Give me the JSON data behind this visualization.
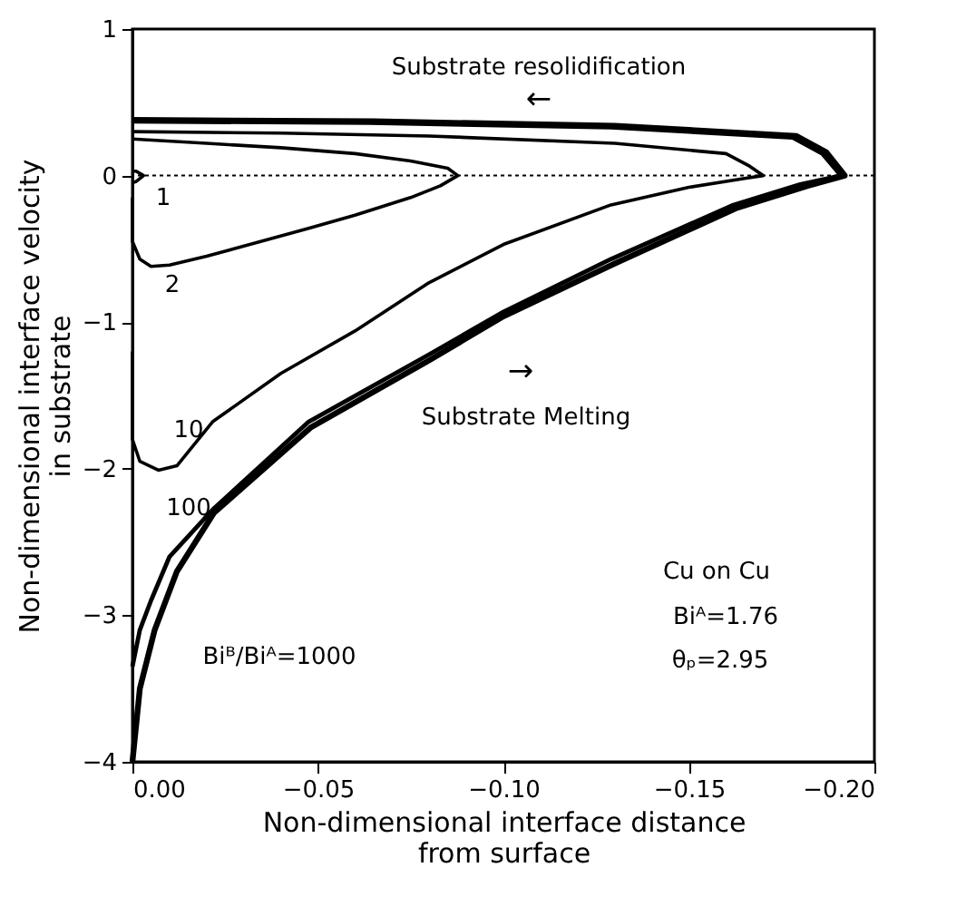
{
  "chart_data": {
    "type": "line",
    "xlabel": "Non-dimensional interface distance\nfrom surface",
    "ylabel": "Non-dimensional interface velocity\nin substrate",
    "xlim": [
      0,
      -0.2
    ],
    "xticks": [
      {
        "value": 0,
        "label": "0.00"
      },
      {
        "value": -0.05,
        "label": "−0.05"
      },
      {
        "value": -0.1,
        "label": "−0.10"
      },
      {
        "value": -0.15,
        "label": "−0.15"
      },
      {
        "value": -0.2,
        "label": "−0.20"
      }
    ],
    "ylim": [
      -4,
      1
    ],
    "yticks": [
      {
        "value": -4,
        "label": "−4"
      },
      {
        "value": -3,
        "label": "−3"
      },
      {
        "value": -2,
        "label": "−2"
      },
      {
        "value": -1,
        "label": "−1"
      },
      0,
      1
    ],
    "grid": false,
    "marker": "none",
    "line_style": "solid",
    "series": [
      {
        "color": "#000000",
        "x": [
          0,
          -0.001,
          -0.003,
          -0.001,
          0
        ],
        "values": [
          -0.05,
          -0.04,
          0,
          0.03,
          0.03
        ]
      },
      {
        "color": "#000000",
        "x": [
          0,
          0,
          -0.002,
          -0.005,
          -0.01,
          -0.02,
          -0.0475,
          -0.06,
          -0.075,
          -0.083,
          -0.0877,
          -0.085,
          -0.075,
          -0.06,
          -0.04,
          -0.02,
          0
        ],
        "values": [
          -0.15,
          -0.45,
          -0.57,
          -0.62,
          -0.61,
          -0.55,
          -0.36,
          -0.27,
          -0.15,
          -0.07,
          0,
          0.05,
          0.1,
          0.15,
          0.19,
          0.22,
          0.25
        ]
      },
      {
        "color": "#000000",
        "x": [
          0,
          0,
          -0.002,
          -0.007,
          -0.012,
          -0.0216,
          -0.04,
          -0.06,
          -0.08,
          -0.1,
          -0.129,
          -0.15,
          -0.165,
          -0.17,
          -0.166,
          -0.16,
          -0.13,
          -0.08,
          -0.04,
          0
        ],
        "values": [
          -1.2,
          -1.8,
          -1.95,
          -2.01,
          -1.98,
          -1.68,
          -1.35,
          -1.06,
          -0.73,
          -0.47,
          -0.2,
          -0.08,
          -0.02,
          0,
          0.07,
          0.15,
          0.22,
          0.27,
          0.29,
          0.3
        ]
      },
      {
        "color": "#000000",
        "x": [
          0,
          -0.002,
          -0.005,
          -0.01,
          -0.0216,
          -0.0475,
          -0.08,
          -0.1,
          -0.129,
          -0.162,
          -0.18,
          -0.191,
          -0.186,
          -0.178,
          -0.129,
          -0.064,
          0
        ],
        "values": [
          -3.35,
          -3.1,
          -2.9,
          -2.6,
          -2.28,
          -1.68,
          -1.22,
          -0.93,
          -0.57,
          -0.2,
          -0.06,
          0,
          0.15,
          0.26,
          0.33,
          0.36,
          0.37
        ]
      },
      {
        "color": "#000000",
        "x": [
          0,
          -0.002,
          -0.006,
          -0.012,
          -0.022,
          -0.048,
          -0.08,
          -0.1,
          -0.13,
          -0.163,
          -0.182,
          -0.192,
          -0.187,
          -0.179,
          -0.13,
          -0.065,
          0
        ],
        "values": [
          -4,
          -3.5,
          -3.1,
          -2.7,
          -2.3,
          -1.72,
          -1.26,
          -0.96,
          -0.6,
          -0.22,
          -0.07,
          0,
          0.16,
          0.27,
          0.34,
          0.37,
          0.38
        ]
      }
    ],
    "ref_lines": [
      {
        "axis": "y",
        "value": 0,
        "line_style": "dotted",
        "color": "#000000"
      }
    ],
    "annotations": [
      "1",
      "2",
      "10",
      "100",
      "Biᴮ/Biᴬ=1000",
      "Substrate resolidification",
      "←",
      "→",
      "Substrate Melting",
      "Cu on Cu",
      "Biᴬ=1.76",
      "θₚ=2.95"
    ]
  }
}
